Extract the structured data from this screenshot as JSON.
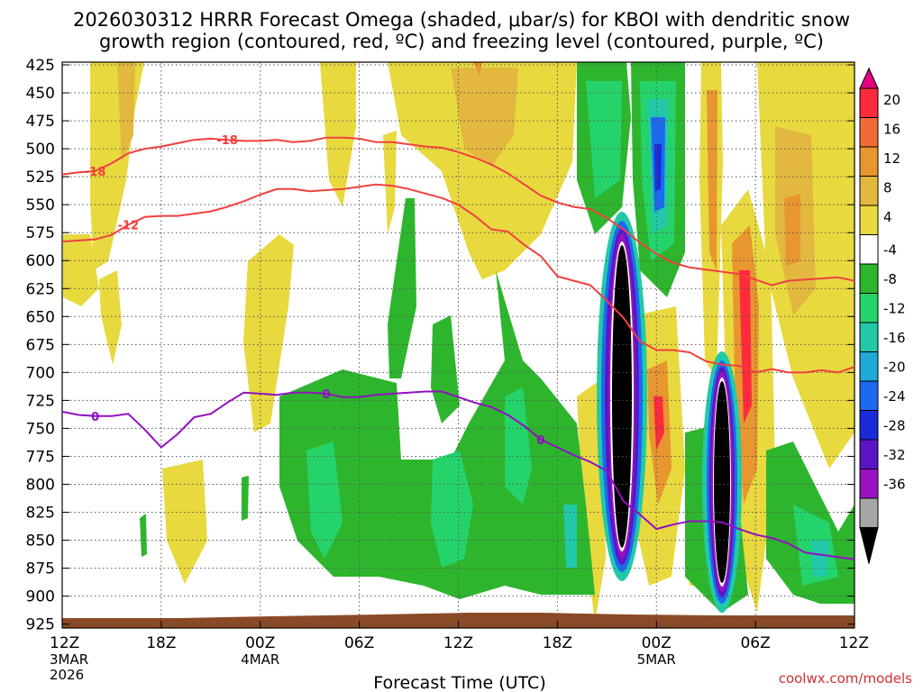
{
  "chart_data": {
    "type": "heatmap",
    "title_line1": "2026030312 HRRR Forecast Omega (shaded, μbar/s) for KBOI with dendritic snow",
    "title_line2": "growth region (contoured, red, ºC) and freezing level (contoured, purple, ºC)",
    "xlabel": "Forecast Time (UTC)",
    "credit": "coolwx.com/models",
    "y_ticks": [
      "425",
      "450",
      "475",
      "500",
      "525",
      "550",
      "575",
      "600",
      "625",
      "650",
      "675",
      "700",
      "725",
      "750",
      "775",
      "800",
      "825",
      "850",
      "875",
      "900",
      "925"
    ],
    "ylim": [
      925,
      425
    ],
    "xlim": [
      0,
      48
    ],
    "x_ticks": [
      {
        "h": 0,
        "label": "12Z",
        "date": "3MAR",
        "year": "2026"
      },
      {
        "h": 6,
        "label": "18Z",
        "date": "",
        "year": ""
      },
      {
        "h": 12,
        "label": "00Z",
        "date": "4MAR",
        "year": ""
      },
      {
        "h": 18,
        "label": "06Z",
        "date": "",
        "year": ""
      },
      {
        "h": 24,
        "label": "12Z",
        "date": "",
        "year": ""
      },
      {
        "h": 30,
        "label": "18Z",
        "date": "",
        "year": ""
      },
      {
        "h": 36,
        "label": "00Z",
        "date": "5MAR",
        "year": ""
      },
      {
        "h": 42,
        "label": "06Z",
        "date": "",
        "year": ""
      },
      {
        "h": 48,
        "label": "12Z",
        "date": "",
        "year": ""
      }
    ],
    "colorbar": {
      "labels": [
        "20",
        "16",
        "12",
        "8",
        "4",
        "-4",
        "-8",
        "-12",
        "-16",
        "-20",
        "-24",
        "-28",
        "-32",
        "-36"
      ],
      "colors": [
        "#e6007e",
        "#ff2a3c",
        "#f26b35",
        "#e8962f",
        "#e3b83f",
        "#e8d93f",
        "#ffffff",
        "#2eb52e",
        "#25d36b",
        "#22c9a9",
        "#1fa9d6",
        "#1b6af0",
        "#1a2ad8",
        "#5a16c6",
        "#9a12c2",
        "#a6a6a6",
        "#000000"
      ]
    },
    "series": [
      {
        "name": "-18 ºC isotherm (red)",
        "label": "-18",
        "color": "#f04040",
        "x": [
          0,
          1,
          2,
          3,
          4,
          5,
          6,
          7,
          8,
          9,
          10,
          11,
          12,
          13,
          14,
          15,
          16,
          17,
          18,
          19,
          20,
          21,
          22,
          23,
          24,
          25,
          26,
          27,
          28,
          29,
          30,
          31,
          32,
          33,
          34,
          35,
          36,
          37,
          38,
          39,
          40,
          41,
          42,
          43,
          44,
          45,
          46,
          47,
          48
        ],
        "p": [
          523,
          521,
          520,
          513,
          504,
          500,
          498,
          495,
          492,
          491,
          492,
          493,
          493,
          492,
          494,
          493,
          490,
          490,
          491,
          494,
          494,
          496,
          498,
          499,
          503,
          508,
          514,
          522,
          532,
          542,
          548,
          552,
          554,
          562,
          572,
          584,
          594,
          602,
          606,
          608,
          610,
          612,
          617,
          622,
          618,
          617,
          616,
          615,
          618
        ]
      },
      {
        "name": "-12 ºC isotherm (red)",
        "label": "-12",
        "color": "#f04040",
        "x": [
          0,
          1,
          2,
          3,
          4,
          5,
          6,
          7,
          8,
          9,
          10,
          11,
          12,
          13,
          14,
          15,
          16,
          17,
          18,
          19,
          20,
          21,
          22,
          23,
          24,
          25,
          26,
          27,
          28,
          29,
          30,
          31,
          32,
          33,
          34,
          35,
          36,
          37,
          38,
          39,
          40,
          41,
          42,
          43,
          44,
          45,
          46,
          47,
          48
        ],
        "p": [
          583,
          582,
          581,
          577,
          568,
          561,
          560,
          560,
          558,
          556,
          552,
          547,
          541,
          536,
          536,
          538,
          537,
          536,
          534,
          532,
          533,
          536,
          540,
          544,
          550,
          560,
          572,
          574,
          586,
          596,
          614,
          618,
          622,
          636,
          651,
          672,
          680,
          680,
          682,
          690,
          693,
          694,
          700,
          697,
          700,
          700,
          698,
          700,
          695
        ]
      },
      {
        "name": "0 ºC freezing level (purple)",
        "label": "0",
        "color": "#9010c0",
        "x": [
          0,
          1,
          2,
          3,
          4,
          5,
          6,
          7,
          8,
          9,
          10,
          11,
          12,
          13,
          14,
          15,
          16,
          17,
          18,
          19,
          20,
          21,
          22,
          23,
          24,
          25,
          26,
          27,
          28,
          29,
          30,
          31,
          32,
          33,
          34,
          35,
          36,
          37,
          38,
          39,
          40,
          41,
          42,
          43,
          44,
          45,
          46,
          47,
          48
        ],
        "p": [
          735,
          738,
          739,
          739,
          737,
          751,
          767,
          755,
          740,
          737,
          727,
          718,
          719,
          720,
          718,
          718,
          719,
          722,
          722,
          720,
          719,
          718,
          717,
          717,
          722,
          727,
          731,
          738,
          748,
          760,
          767,
          774,
          780,
          788,
          815,
          827,
          840,
          836,
          833,
          833,
          834,
          840,
          845,
          848,
          853,
          861,
          863,
          865,
          867
        ]
      }
    ]
  }
}
